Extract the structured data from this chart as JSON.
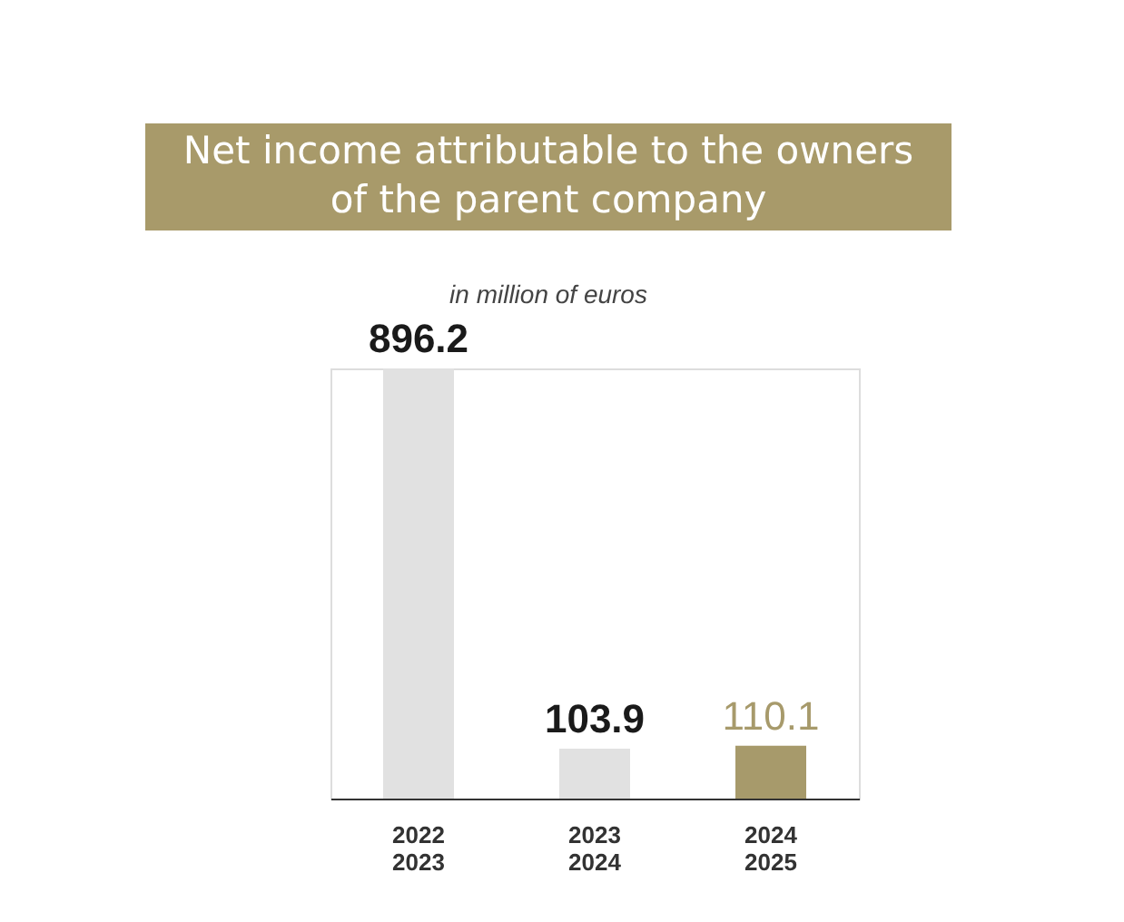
{
  "chart_data": {
    "type": "bar",
    "title": "Net income attributable to the owners\nof the parent company",
    "subtitle": "in million of euros",
    "categories": [
      "2022\n2023",
      "2023\n2024",
      "2024\n2025"
    ],
    "values": [
      896.2,
      103.9,
      110.1
    ],
    "colors": [
      "#e1e1e1",
      "#e1e1e1",
      "#a79a6b"
    ],
    "data_labels": true,
    "grid": false
  }
}
